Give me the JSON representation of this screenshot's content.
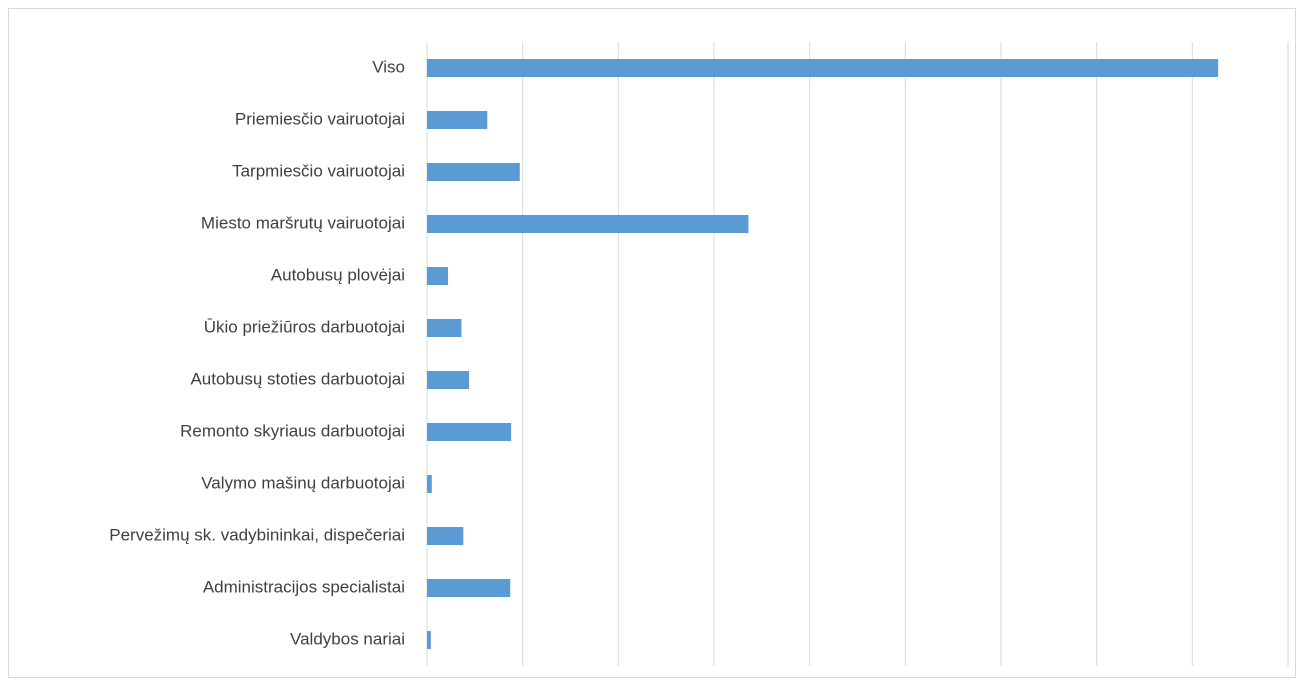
{
  "chart_data": {
    "type": "bar",
    "orientation": "horizontal",
    "categories": [
      "Viso",
      "Priemiesčio vairuotojai",
      "Tarpmiesčio vairuotojai",
      "Miesto maršrutų vairuotojai",
      "Autobusų plovėjai",
      "Ūkio priežiūros darbuotojai",
      "Autobusų stoties darbuotojai",
      "Remonto skyriaus darbuotojai",
      "Valymo mašinų darbuotojai",
      "Pervežimų sk. vadybininkai, dispečeriai",
      "Administracijos specialistai",
      "Valdybos nariai"
    ],
    "values": [
      8.27,
      0.63,
      0.97,
      3.36,
      0.22,
      0.36,
      0.44,
      0.88,
      0.05,
      0.38,
      0.87,
      0.04
    ],
    "color": "#5b9bd5",
    "xlim": [
      0,
      9
    ],
    "xticks": [
      0,
      1,
      2,
      3,
      4,
      5,
      6,
      7,
      8,
      9
    ],
    "grid": true
  }
}
